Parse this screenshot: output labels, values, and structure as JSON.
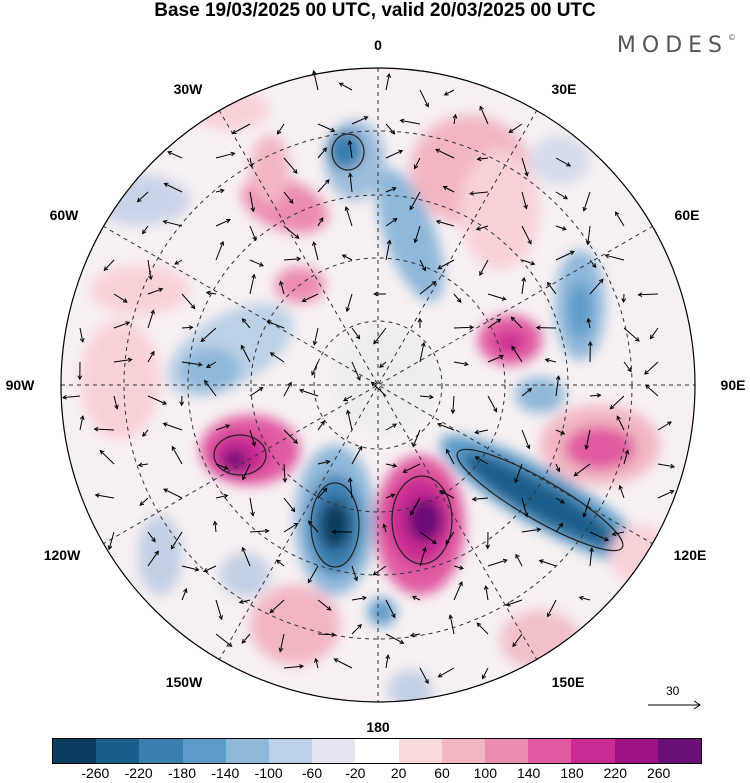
{
  "title": "Base 19/03/2025 00 UTC, valid 20/03/2025 00 UTC",
  "logo": "MODES",
  "logo_mark": "©",
  "longitude_labels": {
    "lon_0": "0",
    "lon_30e": "30E",
    "lon_60e": "60E",
    "lon_90e": "90E",
    "lon_120e": "120E",
    "lon_150e": "150E",
    "lon_180": "180",
    "lon_150w": "150W",
    "lon_120w": "120W",
    "lon_90w": "90W",
    "lon_60w": "60W",
    "lon_30w": "30W"
  },
  "reference_vector": "30",
  "colorbar": {
    "colors": [
      "#0b3d5e",
      "#1a5f8c",
      "#3a7fb0",
      "#5d9cc9",
      "#8eb8da",
      "#bcd0e6",
      "#e4e4f2",
      "#ffffff",
      "#f9dada",
      "#f2b6c2",
      "#eb8bb0",
      "#e05aa0",
      "#c92b92",
      "#9c1282",
      "#6a0f78"
    ],
    "ticks": [
      "-260",
      "-220",
      "-180",
      "-140",
      "-100",
      "-60",
      "-20",
      "20",
      "60",
      "100",
      "140",
      "180",
      "220",
      "260"
    ]
  }
}
